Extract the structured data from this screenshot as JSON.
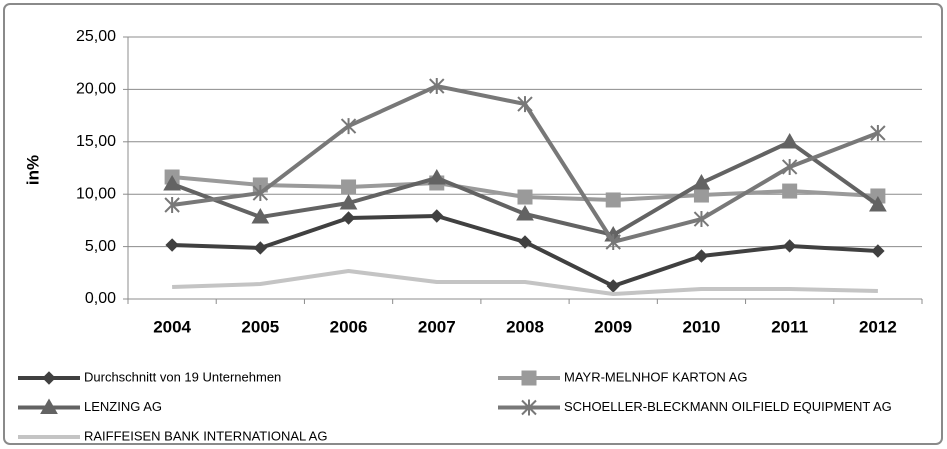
{
  "chart_data": {
    "type": "line",
    "y_label": "in%",
    "categories": [
      "2004",
      "2005",
      "2006",
      "2007",
      "2008",
      "2009",
      "2010",
      "2011",
      "2012"
    ],
    "ylim": [
      0,
      25
    ],
    "yticks": [
      {
        "value": 0,
        "label": "0,00"
      },
      {
        "value": 5,
        "label": "5,00"
      },
      {
        "value": 10,
        "label": "10,00"
      },
      {
        "value": 15,
        "label": "15,00"
      },
      {
        "value": 20,
        "label": "20,00"
      },
      {
        "value": 25,
        "label": "25,00"
      }
    ],
    "grid": true,
    "series": [
      {
        "name": "Durchschnitt von 19 Unternehmen",
        "color": "#404040",
        "marker": "diamond",
        "values": [
          5.15,
          4.87,
          7.73,
          7.92,
          5.44,
          1.24,
          4.1,
          5.06,
          4.58
        ]
      },
      {
        "name": "MAYR-MELNHOF KARTON AG",
        "color": "#9a9a9a",
        "marker": "square",
        "values": [
          11.64,
          10.88,
          10.69,
          11.07,
          9.73,
          9.45,
          9.92,
          10.3,
          9.83
        ]
      },
      {
        "name": "LENZING AG",
        "color": "#636363",
        "marker": "triangle",
        "values": [
          10.97,
          7.82,
          9.16,
          11.55,
          8.11,
          6.11,
          11.07,
          14.98,
          8.97
        ]
      },
      {
        "name": "SCHOELLER-BLECKMANN OILFIELD EQUIPMENT AG",
        "color": "#787878",
        "marker": "star",
        "values": [
          8.97,
          10.11,
          16.5,
          20.32,
          18.6,
          5.44,
          7.63,
          12.6,
          15.84
        ]
      },
      {
        "name": "RAIFFEISEN BANK INTERNATIONAL AG",
        "color": "#c4c4c4",
        "marker": "none",
        "values": [
          1.15,
          1.43,
          2.67,
          1.62,
          1.62,
          0.48,
          0.95,
          0.95,
          0.76
        ]
      }
    ]
  }
}
